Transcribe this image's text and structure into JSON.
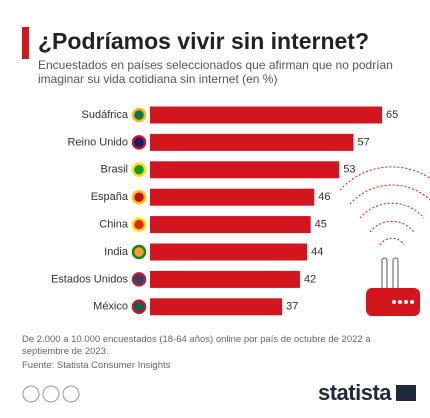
{
  "chart_data": {
    "type": "bar",
    "orientation": "horizontal",
    "title": "¿Podríamos vivir sin internet?",
    "subtitle": "Encuestados en países seleccionados que afirman que no podrían imaginar su vida cotidiana sin internet (en %)",
    "categories": [
      "Sudáfrica",
      "Reino Unido",
      "Brasil",
      "España",
      "China",
      "India",
      "Estados Unidos",
      "México"
    ],
    "values": [
      65,
      57,
      53,
      46,
      45,
      44,
      42,
      37
    ],
    "color": "#d3161e",
    "note": "De 2.000 a 10.000 encuestados (18-64 años) online por país de octubre de 2022 a septiembre de 2023.",
    "source": "Fuente: Statista Consumer Insights",
    "logo": "statista"
  }
}
